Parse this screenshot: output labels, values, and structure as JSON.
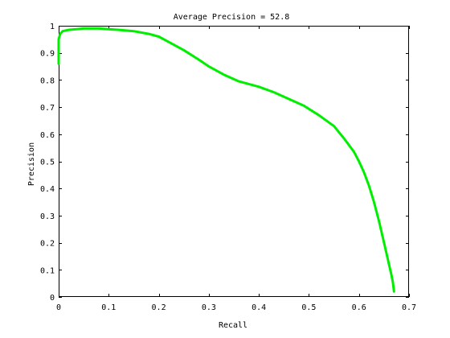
{
  "chart_data": {
    "type": "line",
    "title": "Average Precision = 52.8",
    "xlabel": "Recall",
    "ylabel": "Precision",
    "xlim": [
      0,
      0.7
    ],
    "ylim": [
      0,
      1
    ],
    "grid": false,
    "x_ticks": [
      {
        "value": 0,
        "label": "0"
      },
      {
        "value": 0.1,
        "label": "0.1"
      },
      {
        "value": 0.2,
        "label": "0.2"
      },
      {
        "value": 0.3,
        "label": "0.3"
      },
      {
        "value": 0.4,
        "label": "0.4"
      },
      {
        "value": 0.5,
        "label": "0.5"
      },
      {
        "value": 0.6,
        "label": "0.6"
      },
      {
        "value": 0.7,
        "label": "0.7"
      }
    ],
    "y_ticks": [
      {
        "value": 0,
        "label": "0"
      },
      {
        "value": 0.1,
        "label": "0.1"
      },
      {
        "value": 0.2,
        "label": "0.2"
      },
      {
        "value": 0.3,
        "label": "0.3"
      },
      {
        "value": 0.4,
        "label": "0.4"
      },
      {
        "value": 0.5,
        "label": "0.5"
      },
      {
        "value": 0.6,
        "label": "0.6"
      },
      {
        "value": 0.7,
        "label": "0.7"
      },
      {
        "value": 0.8,
        "label": "0.8"
      },
      {
        "value": 0.9,
        "label": "0.9"
      },
      {
        "value": 1,
        "label": "1"
      }
    ],
    "series": [
      {
        "color": "#00ee00",
        "x": [
          0.0,
          0.0,
          0.003,
          0.008,
          0.02,
          0.05,
          0.08,
          0.12,
          0.15,
          0.18,
          0.2,
          0.22,
          0.25,
          0.28,
          0.3,
          0.33,
          0.36,
          0.4,
          0.43,
          0.46,
          0.49,
          0.52,
          0.55,
          0.57,
          0.59,
          0.6,
          0.61,
          0.62,
          0.63,
          0.64,
          0.65,
          0.655,
          0.66,
          0.665,
          0.668,
          0.67
        ],
        "y": [
          0.86,
          0.95,
          0.97,
          0.98,
          0.985,
          0.99,
          0.99,
          0.985,
          0.98,
          0.97,
          0.96,
          0.94,
          0.91,
          0.875,
          0.85,
          0.82,
          0.795,
          0.775,
          0.755,
          0.73,
          0.705,
          0.67,
          0.63,
          0.585,
          0.535,
          0.5,
          0.46,
          0.41,
          0.35,
          0.28,
          0.2,
          0.16,
          0.12,
          0.08,
          0.05,
          0.02
        ]
      }
    ]
  }
}
